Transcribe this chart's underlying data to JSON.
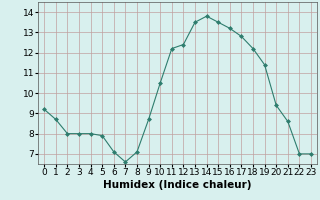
{
  "x": [
    0,
    1,
    2,
    3,
    4,
    5,
    6,
    7,
    8,
    9,
    10,
    11,
    12,
    13,
    14,
    15,
    16,
    17,
    18,
    19,
    20,
    21,
    22,
    23
  ],
  "y": [
    9.2,
    8.7,
    8.0,
    8.0,
    8.0,
    7.9,
    7.1,
    6.6,
    7.1,
    8.7,
    10.5,
    12.2,
    12.4,
    13.5,
    13.8,
    13.5,
    13.2,
    12.8,
    12.2,
    11.4,
    9.4,
    8.6,
    7.0,
    7.0
  ],
  "line_color": "#2e7d6e",
  "marker": "D",
  "marker_size": 2.0,
  "bg_color": "#d8f0ee",
  "grid_color": "#c0a0a0",
  "xlabel": "Humidex (Indice chaleur)",
  "ylim": [
    6.5,
    14.5
  ],
  "xlim": [
    -0.5,
    23.5
  ],
  "yticks": [
    7,
    8,
    9,
    10,
    11,
    12,
    13,
    14
  ],
  "xtick_labels": [
    "0",
    "1",
    "2",
    "3",
    "4",
    "5",
    "6",
    "7",
    "8",
    "9",
    "10",
    "11",
    "12",
    "13",
    "14",
    "15",
    "16",
    "17",
    "18",
    "19",
    "20",
    "21",
    "22",
    "23"
  ],
  "xlabel_fontsize": 7.5,
  "tick_fontsize": 6.5
}
